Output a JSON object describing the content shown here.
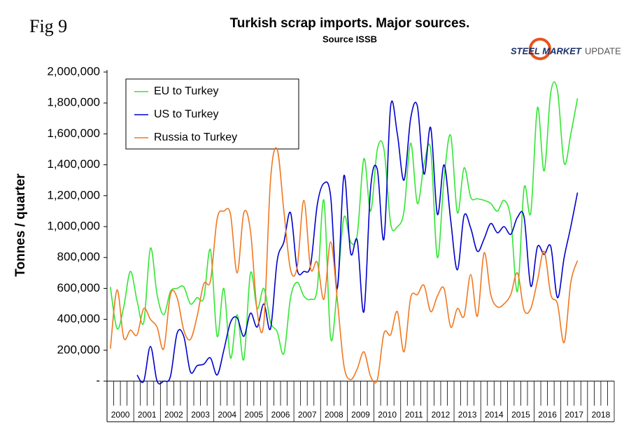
{
  "figure_label": "Fig 9",
  "logo": {
    "part1": "STEEL MARKET",
    "part2": "UPDATE"
  },
  "chart_data": {
    "type": "line",
    "title": "Turkish scrap imports. Major sources.",
    "subtitle": "Source ISSB",
    "y_label": "Tonnes / quarter",
    "categories": [
      "2000",
      null,
      null,
      null,
      "2001",
      null,
      null,
      null,
      "2002",
      null,
      null,
      null,
      "2003",
      null,
      null,
      null,
      "2004",
      null,
      null,
      null,
      "2005",
      null,
      null,
      null,
      "2006",
      null,
      null,
      null,
      "2007",
      null,
      null,
      null,
      "2008",
      null,
      null,
      null,
      "2009",
      null,
      null,
      null,
      "2010",
      null,
      null,
      null,
      "2011",
      null,
      null,
      null,
      "2012",
      null,
      null,
      null,
      "2013",
      null,
      null,
      null,
      "2014",
      null,
      null,
      null,
      "2015",
      null,
      null,
      null,
      "2016",
      null,
      null,
      null,
      "2017",
      null,
      null,
      null,
      "2018",
      null,
      null,
      null
    ],
    "ylim": [
      0,
      2000000
    ],
    "yticks": [
      {
        "value": 0,
        "label": "-"
      },
      {
        "value": 200000,
        "label": "200,000"
      },
      {
        "value": 400000,
        "label": "400,000"
      },
      {
        "value": 600000,
        "label": "600,000"
      },
      {
        "value": 800000,
        "label": "800,000"
      },
      {
        "value": 1000000,
        "label": "1,000,000"
      },
      {
        "value": 1200000,
        "label": "1,200,000"
      },
      {
        "value": 1400000,
        "label": "1,400,000"
      },
      {
        "value": 1600000,
        "label": "1,600,000"
      },
      {
        "value": 1800000,
        "label": "1,800,000"
      },
      {
        "value": 2000000,
        "label": "2,000,000"
      }
    ],
    "grid": false,
    "legend": "upper left",
    "series": [
      {
        "name": "EU to Turkey",
        "color": "#33e633",
        "values": [
          610000,
          340000,
          480000,
          710000,
          520000,
          380000,
          860000,
          560000,
          430000,
          580000,
          600000,
          610000,
          500000,
          540000,
          540000,
          850000,
          290000,
          600000,
          150000,
          430000,
          140000,
          700000,
          470000,
          600000,
          380000,
          320000,
          180000,
          540000,
          640000,
          550000,
          530000,
          600000,
          1170000,
          280000,
          600000,
          1060000,
          900000,
          950000,
          1440000,
          1100000,
          1500000,
          1500000,
          1020000,
          1000000,
          1100000,
          1540000,
          1150000,
          1400000,
          1500000,
          800000,
          1310000,
          1590000,
          1090000,
          1380000,
          1190000,
          1180000,
          1170000,
          1150000,
          1100000,
          1170000,
          1050000,
          580000,
          1250000,
          1090000,
          1770000,
          1360000,
          1870000,
          1880000,
          1410000,
          1600000,
          1830000,
          null,
          null,
          null,
          null,
          null
        ]
      },
      {
        "name": "US to Turkey",
        "color": "#0000cc",
        "values": [
          null,
          null,
          null,
          null,
          40000,
          0,
          225000,
          0,
          0,
          30000,
          310000,
          290000,
          60000,
          100000,
          110000,
          150000,
          40000,
          200000,
          380000,
          410000,
          290000,
          440000,
          350000,
          500000,
          340000,
          780000,
          900000,
          1090000,
          720000,
          710000,
          750000,
          1140000,
          1280000,
          1200000,
          600000,
          1330000,
          830000,
          910000,
          450000,
          1250000,
          1370000,
          920000,
          1780000,
          1600000,
          1300000,
          1700000,
          1780000,
          1340000,
          1640000,
          1080000,
          1400000,
          1040000,
          720000,
          1070000,
          990000,
          840000,
          920000,
          1020000,
          960000,
          1000000,
          950000,
          1060000,
          1060000,
          615000,
          870000,
          820000,
          870000,
          540000,
          800000,
          1000000,
          1220000,
          null,
          null,
          null,
          null,
          null
        ]
      },
      {
        "name": "Russia to Turkey",
        "color": "#f07820",
        "values": [
          210000,
          590000,
          280000,
          330000,
          300000,
          470000,
          400000,
          350000,
          210000,
          560000,
          540000,
          330000,
          270000,
          420000,
          630000,
          650000,
          1050000,
          1100000,
          1080000,
          700000,
          1090000,
          970000,
          450000,
          380000,
          1300000,
          1500000,
          1100000,
          720000,
          740000,
          1170000,
          730000,
          770000,
          530000,
          900000,
          530000,
          100000,
          10000,
          80000,
          190000,
          30000,
          10000,
          310000,
          300000,
          450000,
          190000,
          540000,
          560000,
          620000,
          450000,
          550000,
          600000,
          350000,
          470000,
          420000,
          690000,
          420000,
          830000,
          560000,
          480000,
          500000,
          560000,
          700000,
          460000,
          470000,
          650000,
          840000,
          560000,
          500000,
          250000,
          640000,
          780000,
          null,
          null,
          null,
          null,
          null
        ]
      }
    ]
  }
}
